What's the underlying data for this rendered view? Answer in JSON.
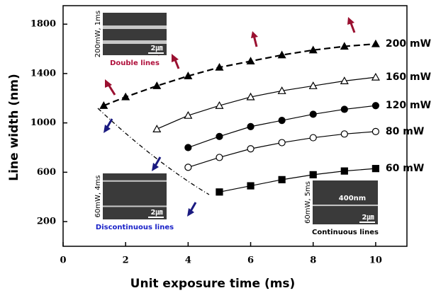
{
  "chart_data": {
    "type": "line",
    "x_label": "Unit exposure time (ms)",
    "y_label": "Line width (nm)",
    "xlim": [
      0,
      11
    ],
    "xticks": [
      0,
      2,
      4,
      6,
      8,
      10
    ],
    "ylim": [
      0,
      1950
    ],
    "yticks": [
      200,
      600,
      1000,
      1400,
      1800
    ],
    "series": [
      {
        "name": "200 mW",
        "color": "#000000",
        "marker": "triangle",
        "filled": true,
        "dashed": true,
        "x": [
          1.3,
          2,
          3,
          4,
          5,
          6,
          7,
          8,
          9,
          10
        ],
        "values": [
          1140,
          1210,
          1300,
          1380,
          1450,
          1500,
          1550,
          1590,
          1620,
          1640
        ]
      },
      {
        "name": "160 mW",
        "color": "#000000",
        "marker": "triangle",
        "filled": false,
        "dashed": false,
        "x": [
          3,
          4,
          5,
          6,
          7,
          8,
          9,
          10
        ],
        "values": [
          950,
          1060,
          1140,
          1210,
          1260,
          1300,
          1340,
          1370
        ]
      },
      {
        "name": "120 mW",
        "color": "#000000",
        "marker": "circle",
        "filled": true,
        "dashed": false,
        "x": [
          4,
          5,
          6,
          7,
          8,
          9,
          10
        ],
        "values": [
          800,
          890,
          970,
          1020,
          1070,
          1110,
          1140
        ]
      },
      {
        "name": "80 mW",
        "color": "#000000",
        "marker": "circle",
        "filled": false,
        "dashed": false,
        "x": [
          4,
          5,
          6,
          7,
          8,
          9,
          10
        ],
        "values": [
          640,
          720,
          790,
          840,
          880,
          910,
          930
        ]
      },
      {
        "name": "60 mW",
        "color": "#000000",
        "marker": "square",
        "filled": true,
        "dashed": false,
        "x": [
          5,
          6,
          7,
          8,
          9,
          10
        ],
        "values": [
          440,
          490,
          540,
          580,
          610,
          630
        ]
      }
    ],
    "insets": [
      {
        "side_label": "200mW, 1ms",
        "scale": "2㎛",
        "caption": "Double lines",
        "caption_color": "#b0103c"
      },
      {
        "side_label": "60mW, 4ms",
        "scale": "2㎛",
        "caption": "Discontinuous lines",
        "caption_color": "#1a22c8"
      },
      {
        "side_label": "60mW, 5ms",
        "scale": "2㎛",
        "caption": "Continuous lines",
        "caption_color": "#000000",
        "width_label": "400nm"
      }
    ]
  }
}
